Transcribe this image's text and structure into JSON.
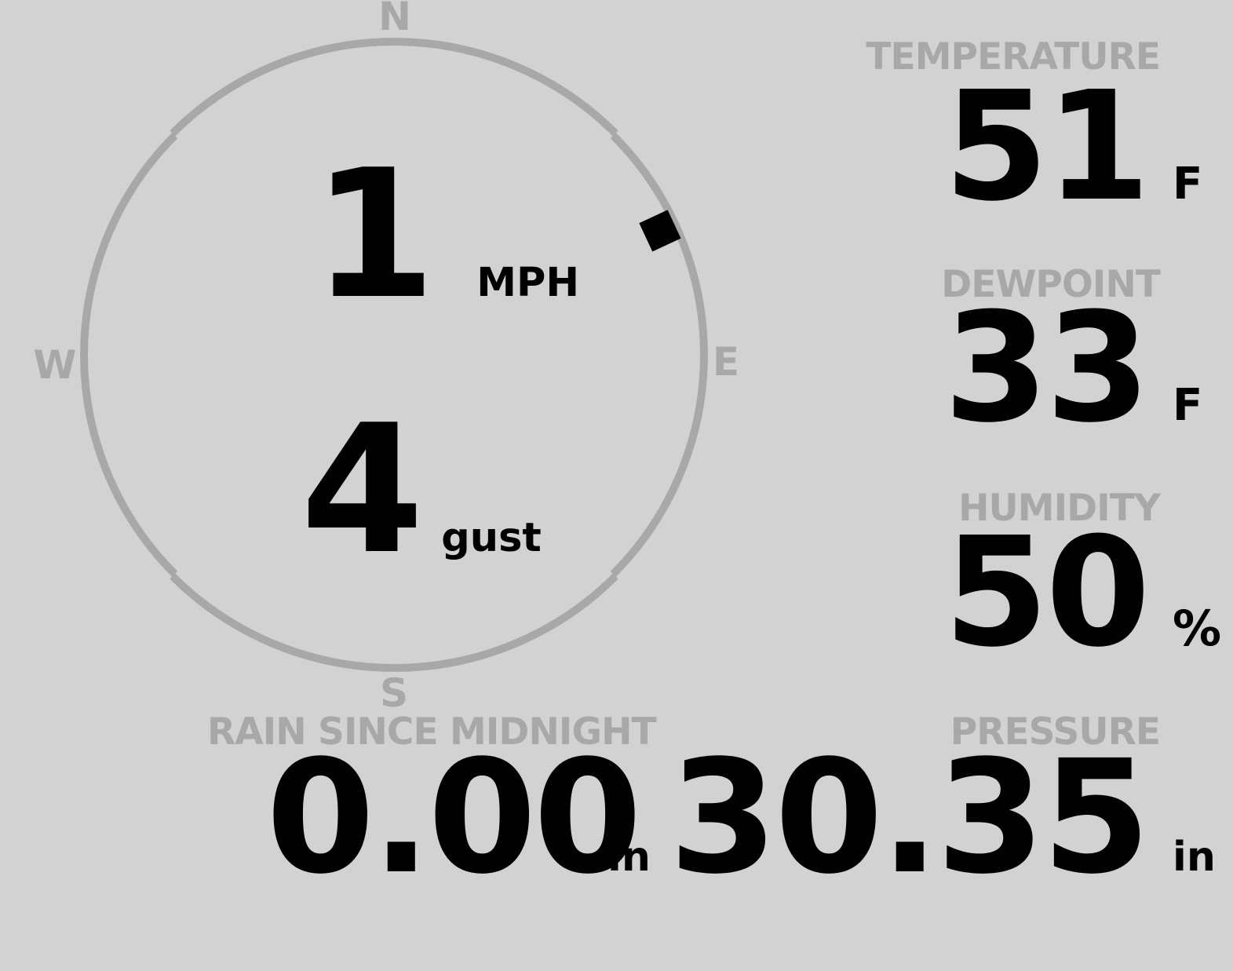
{
  "app": {
    "background_color": "#d2d2d2",
    "muted_color": "#a8a8a8",
    "value_color": "#000000"
  },
  "wind_gauge": {
    "compass": {
      "north": "N",
      "east": "E",
      "south": "S",
      "west": "W"
    },
    "speed": {
      "value": "1",
      "unit": "MPH"
    },
    "gust": {
      "value": "4",
      "unit": "gust"
    },
    "direction_degrees": 65
  },
  "metrics": {
    "temperature": {
      "label": "TEMPERATURE",
      "value": "51",
      "unit": "F"
    },
    "dewpoint": {
      "label": "DEWPOINT",
      "value": "33",
      "unit": "F"
    },
    "humidity": {
      "label": "HUMIDITY",
      "value": "50",
      "unit": "%"
    },
    "rain": {
      "label": "RAIN SINCE MIDNIGHT",
      "value": "0.00",
      "unit": "in"
    },
    "pressure": {
      "label": "PRESSURE",
      "value": "30.35",
      "unit": "in"
    }
  }
}
